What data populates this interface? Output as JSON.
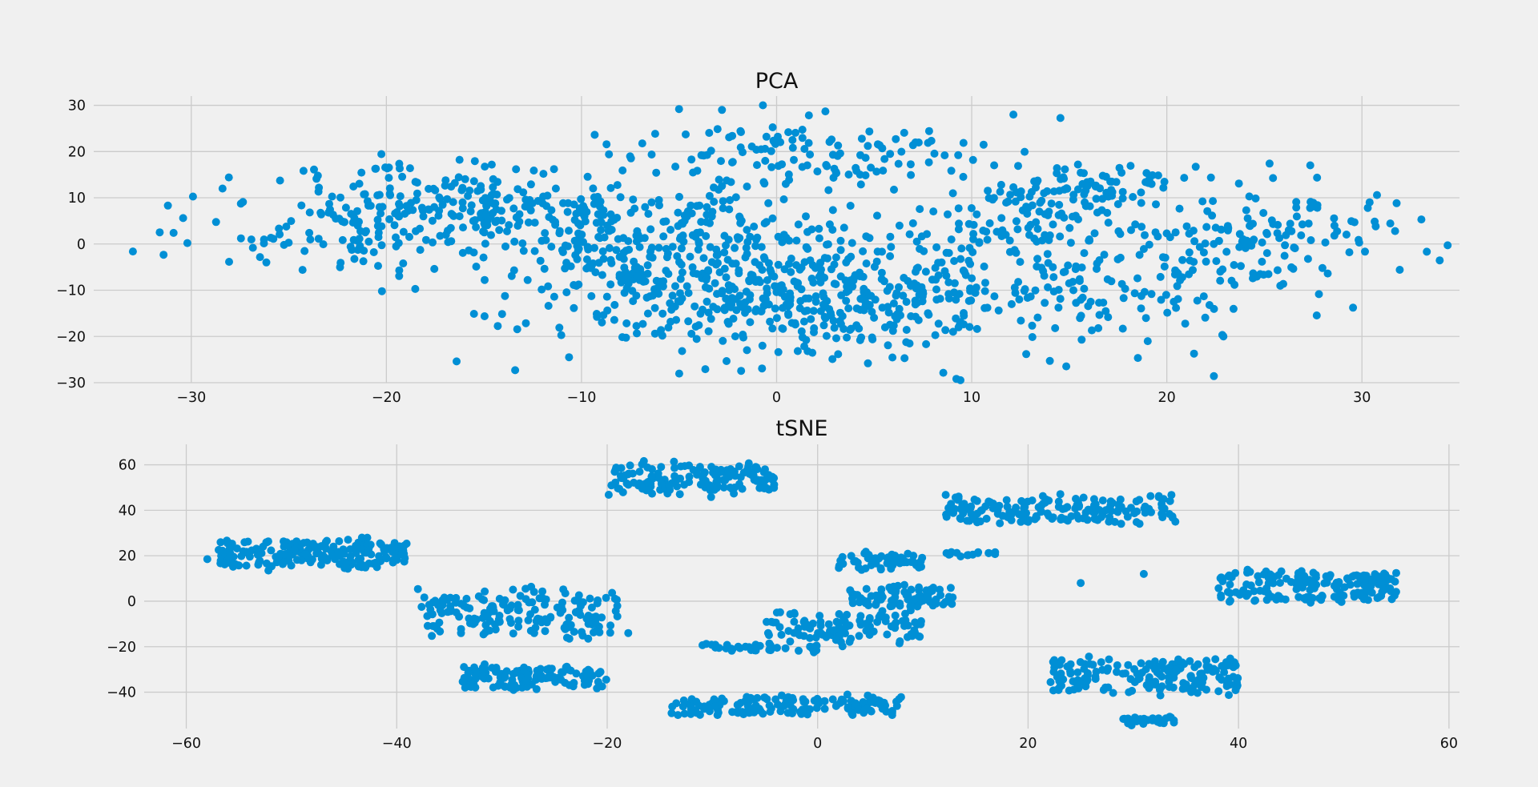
{
  "chart_data": [
    {
      "type": "scatter",
      "title": "PCA",
      "xlabel": "",
      "ylabel": "",
      "xlim": [
        -35,
        35
      ],
      "ylim": [
        -30,
        32
      ],
      "xticks": [
        -30,
        -20,
        -10,
        0,
        10,
        20,
        30
      ],
      "yticks": [
        -30,
        -20,
        -10,
        0,
        10,
        20,
        30
      ],
      "xtick_labels": [
        "−30",
        "−20",
        "−10",
        "0",
        "10",
        "20",
        "30"
      ],
      "ytick_labels": [
        "−30",
        "−20",
        "−10",
        "0",
        "10",
        "20",
        "30"
      ],
      "grid": true,
      "color": "#008fd5",
      "clusters": [
        {
          "cx": -20,
          "cy": 5,
          "sx": 5,
          "sy": 6,
          "n": 220
        },
        {
          "cx": -14,
          "cy": 9,
          "sx": 3,
          "sy": 3,
          "n": 80
        },
        {
          "cx": -7,
          "cy": -5,
          "sx": 4,
          "sy": 8,
          "n": 200
        },
        {
          "cx": 1,
          "cy": -12,
          "sx": 5,
          "sy": 7,
          "n": 330
        },
        {
          "cx": 1,
          "cy": 20,
          "sx": 5,
          "sy": 4,
          "n": 120
        },
        {
          "cx": 8,
          "cy": -6,
          "sx": 5,
          "sy": 9,
          "n": 160
        },
        {
          "cx": 16,
          "cy": 12,
          "sx": 3,
          "sy": 3,
          "n": 90
        },
        {
          "cx": 19,
          "cy": -3,
          "sx": 6,
          "sy": 9,
          "n": 200
        },
        {
          "cx": 26,
          "cy": 2,
          "sx": 3,
          "sy": 5,
          "n": 80
        },
        {
          "cx": -4,
          "cy": 5,
          "sx": 4,
          "sy": 5,
          "n": 90
        }
      ],
      "points": [
        [
          -31.2,
          8.3
        ],
        [
          -30.2,
          0.2
        ],
        [
          31.7,
          2.8
        ],
        [
          30.3,
          7.8
        ],
        [
          -28.4,
          12.0
        ],
        [
          -16.4,
          -25.4
        ],
        [
          -13.4,
          -27.3
        ],
        [
          -0.7,
          30.0
        ],
        [
          2.5,
          28.7
        ],
        [
          -2.8,
          29.0
        ],
        [
          -5.0,
          29.2
        ]
      ]
    },
    {
      "type": "scatter",
      "title": "tSNE",
      "xlabel": "",
      "ylabel": "",
      "xlim": [
        -64,
        61
      ],
      "ylim": [
        -56,
        69
      ],
      "xticks": [
        -60,
        -40,
        -20,
        0,
        20,
        40,
        60
      ],
      "yticks": [
        -40,
        -20,
        0,
        20,
        40,
        60
      ],
      "xtick_labels": [
        "−60",
        "−40",
        "−20",
        "0",
        "20",
        "40",
        "60"
      ],
      "ytick_labels": [
        "−40",
        "−20",
        "0",
        "20",
        "40",
        "60"
      ],
      "grid": true,
      "color": "#008fd5",
      "clusters": [
        {
          "x0": -57,
          "x1": -39,
          "y0": 15,
          "y1": 26,
          "n": 200
        },
        {
          "x0": -20,
          "x1": -4,
          "y0": 48,
          "y1": 60,
          "n": 150
        },
        {
          "x0": -38,
          "x1": -19,
          "y0": -14,
          "y1": 4,
          "n": 170
        },
        {
          "x0": -34,
          "x1": -20,
          "y0": -38,
          "y1": -29,
          "n": 130
        },
        {
          "x0": -14,
          "x1": 8,
          "y0": -50,
          "y1": -42,
          "n": 150
        },
        {
          "x0": -11,
          "x1": 0,
          "y0": -22,
          "y1": -19,
          "n": 35
        },
        {
          "x0": -5,
          "x1": 10,
          "y0": -18,
          "y1": -5,
          "n": 110
        },
        {
          "x0": 3,
          "x1": 13,
          "y0": -2,
          "y1": 6,
          "n": 90
        },
        {
          "x0": 2,
          "x1": 10,
          "y0": 14,
          "y1": 21,
          "n": 60
        },
        {
          "x0": 12,
          "x1": 34,
          "y0": 35,
          "y1": 46,
          "n": 170
        },
        {
          "x0": 12,
          "x1": 17,
          "y0": 20,
          "y1": 22,
          "n": 15
        },
        {
          "x0": 38,
          "x1": 55,
          "y0": 0,
          "y1": 12,
          "n": 170
        },
        {
          "x0": 22,
          "x1": 40,
          "y0": -40,
          "y1": -26,
          "n": 170
        },
        {
          "x0": 29,
          "x1": 34,
          "y0": -54,
          "y1": -51,
          "n": 30
        }
      ],
      "points": [
        [
          -58,
          18.5
        ],
        [
          23,
          -28
        ],
        [
          34,
          35
        ],
        [
          25,
          8
        ],
        [
          31,
          12
        ],
        [
          -18,
          -14
        ]
      ]
    }
  ]
}
